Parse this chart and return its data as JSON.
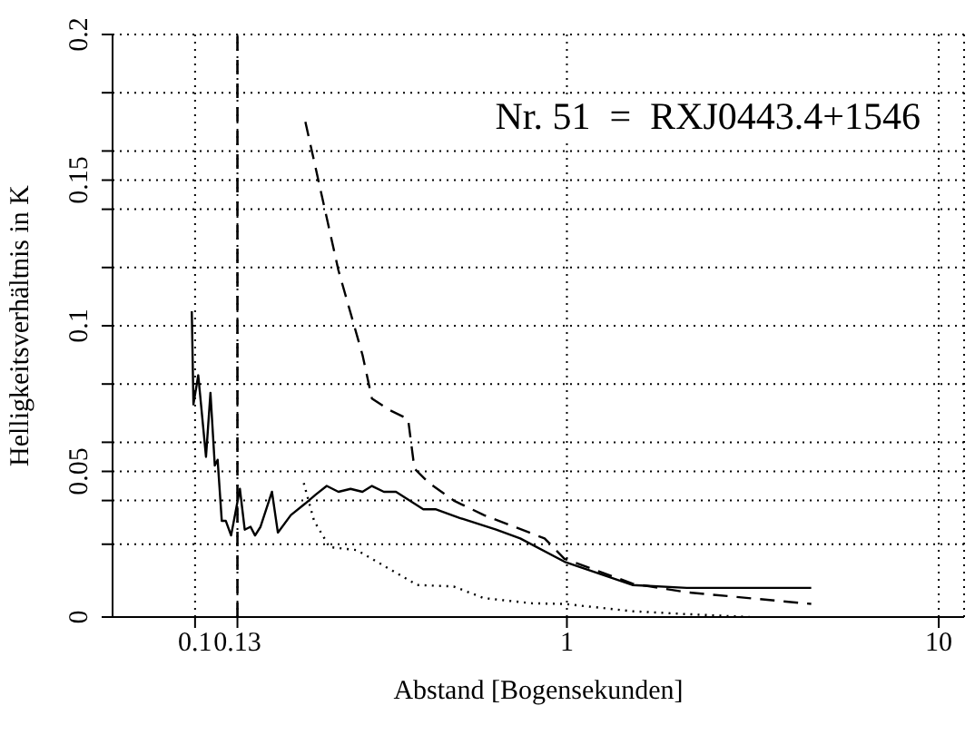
{
  "chart_data": {
    "type": "line",
    "xlabel": "Abstand [Bogensekunden]",
    "ylabel": "Helligkeitsverhältnis in K",
    "annotations": [
      "Nr. 51  =  RXJ0443.4+1546"
    ],
    "log": "x",
    "xlim": [
      0.06,
      11.7
    ],
    "xticks": [
      0.1,
      0.13,
      1,
      10
    ],
    "ylim": [
      0,
      0.2
    ],
    "yticks": [
      0,
      {
        "value": 0.025,
        "label": null
      },
      {
        "value": 0.04,
        "label": null
      },
      0.05,
      {
        "value": 0.06,
        "label": null
      },
      {
        "value": 0.08,
        "label": null
      },
      0.1,
      {
        "value": 0.12,
        "label": null
      },
      {
        "value": 0.14,
        "label": null
      },
      0.15,
      {
        "value": 0.16,
        "label": null
      },
      {
        "value": 0.18,
        "label": null
      },
      0.2
    ],
    "grid": true,
    "marker": "none",
    "ref_lines": [
      {
        "axis": "x",
        "value": 0.13,
        "color": "#000000",
        "line_style": "dashed"
      }
    ],
    "series": [
      {
        "color": "#000000",
        "line_style": "solid",
        "x": [
          0.098,
          0.099,
          0.102,
          0.107,
          0.11,
          0.113,
          0.115,
          0.118,
          0.121,
          0.125,
          0.132,
          0.136,
          0.141,
          0.145,
          0.15,
          0.161,
          0.167,
          0.181,
          0.198,
          0.211,
          0.226,
          0.243,
          0.262,
          0.282,
          0.299,
          0.322,
          0.347,
          0.411,
          0.443,
          0.515,
          0.645,
          0.749,
          0.985,
          1.5,
          2.1,
          4.54
        ],
        "values": [
          0.105,
          0.073,
          0.083,
          0.055,
          0.077,
          0.052,
          0.054,
          0.033,
          0.033,
          0.028,
          0.044,
          0.03,
          0.031,
          0.028,
          0.031,
          0.043,
          0.029,
          0.035,
          0.039,
          0.042,
          0.045,
          0.043,
          0.044,
          0.043,
          0.045,
          0.043,
          0.043,
          0.037,
          0.037,
          0.034,
          0.03,
          0.027,
          0.019,
          0.011,
          0.01,
          0.01
        ]
      },
      {
        "color": "#000000",
        "line_style": "dashed",
        "x": [
          0.198,
          0.243,
          0.282,
          0.299,
          0.334,
          0.374,
          0.389,
          0.426,
          0.496,
          0.598,
          0.721,
          0.871,
          0.985,
          1.5,
          2.1,
          4.54
        ],
        "values": [
          0.17,
          0.119,
          0.09,
          0.075,
          0.071,
          0.068,
          0.051,
          0.046,
          0.04,
          0.035,
          0.031,
          0.027,
          0.02,
          0.0115,
          0.0085,
          0.0045
        ]
      },
      {
        "color": "#000000",
        "line_style": "dotted",
        "x": [
          0.196,
          0.209,
          0.23,
          0.272,
          0.328,
          0.396,
          0.496,
          0.598,
          0.807,
          0.985,
          1.5,
          2.1,
          3.1
        ],
        "values": [
          0.046,
          0.033,
          0.024,
          0.023,
          0.017,
          0.011,
          0.0105,
          0.0065,
          0.0047,
          0.0045,
          0.002,
          0.001,
          0
        ]
      }
    ]
  }
}
